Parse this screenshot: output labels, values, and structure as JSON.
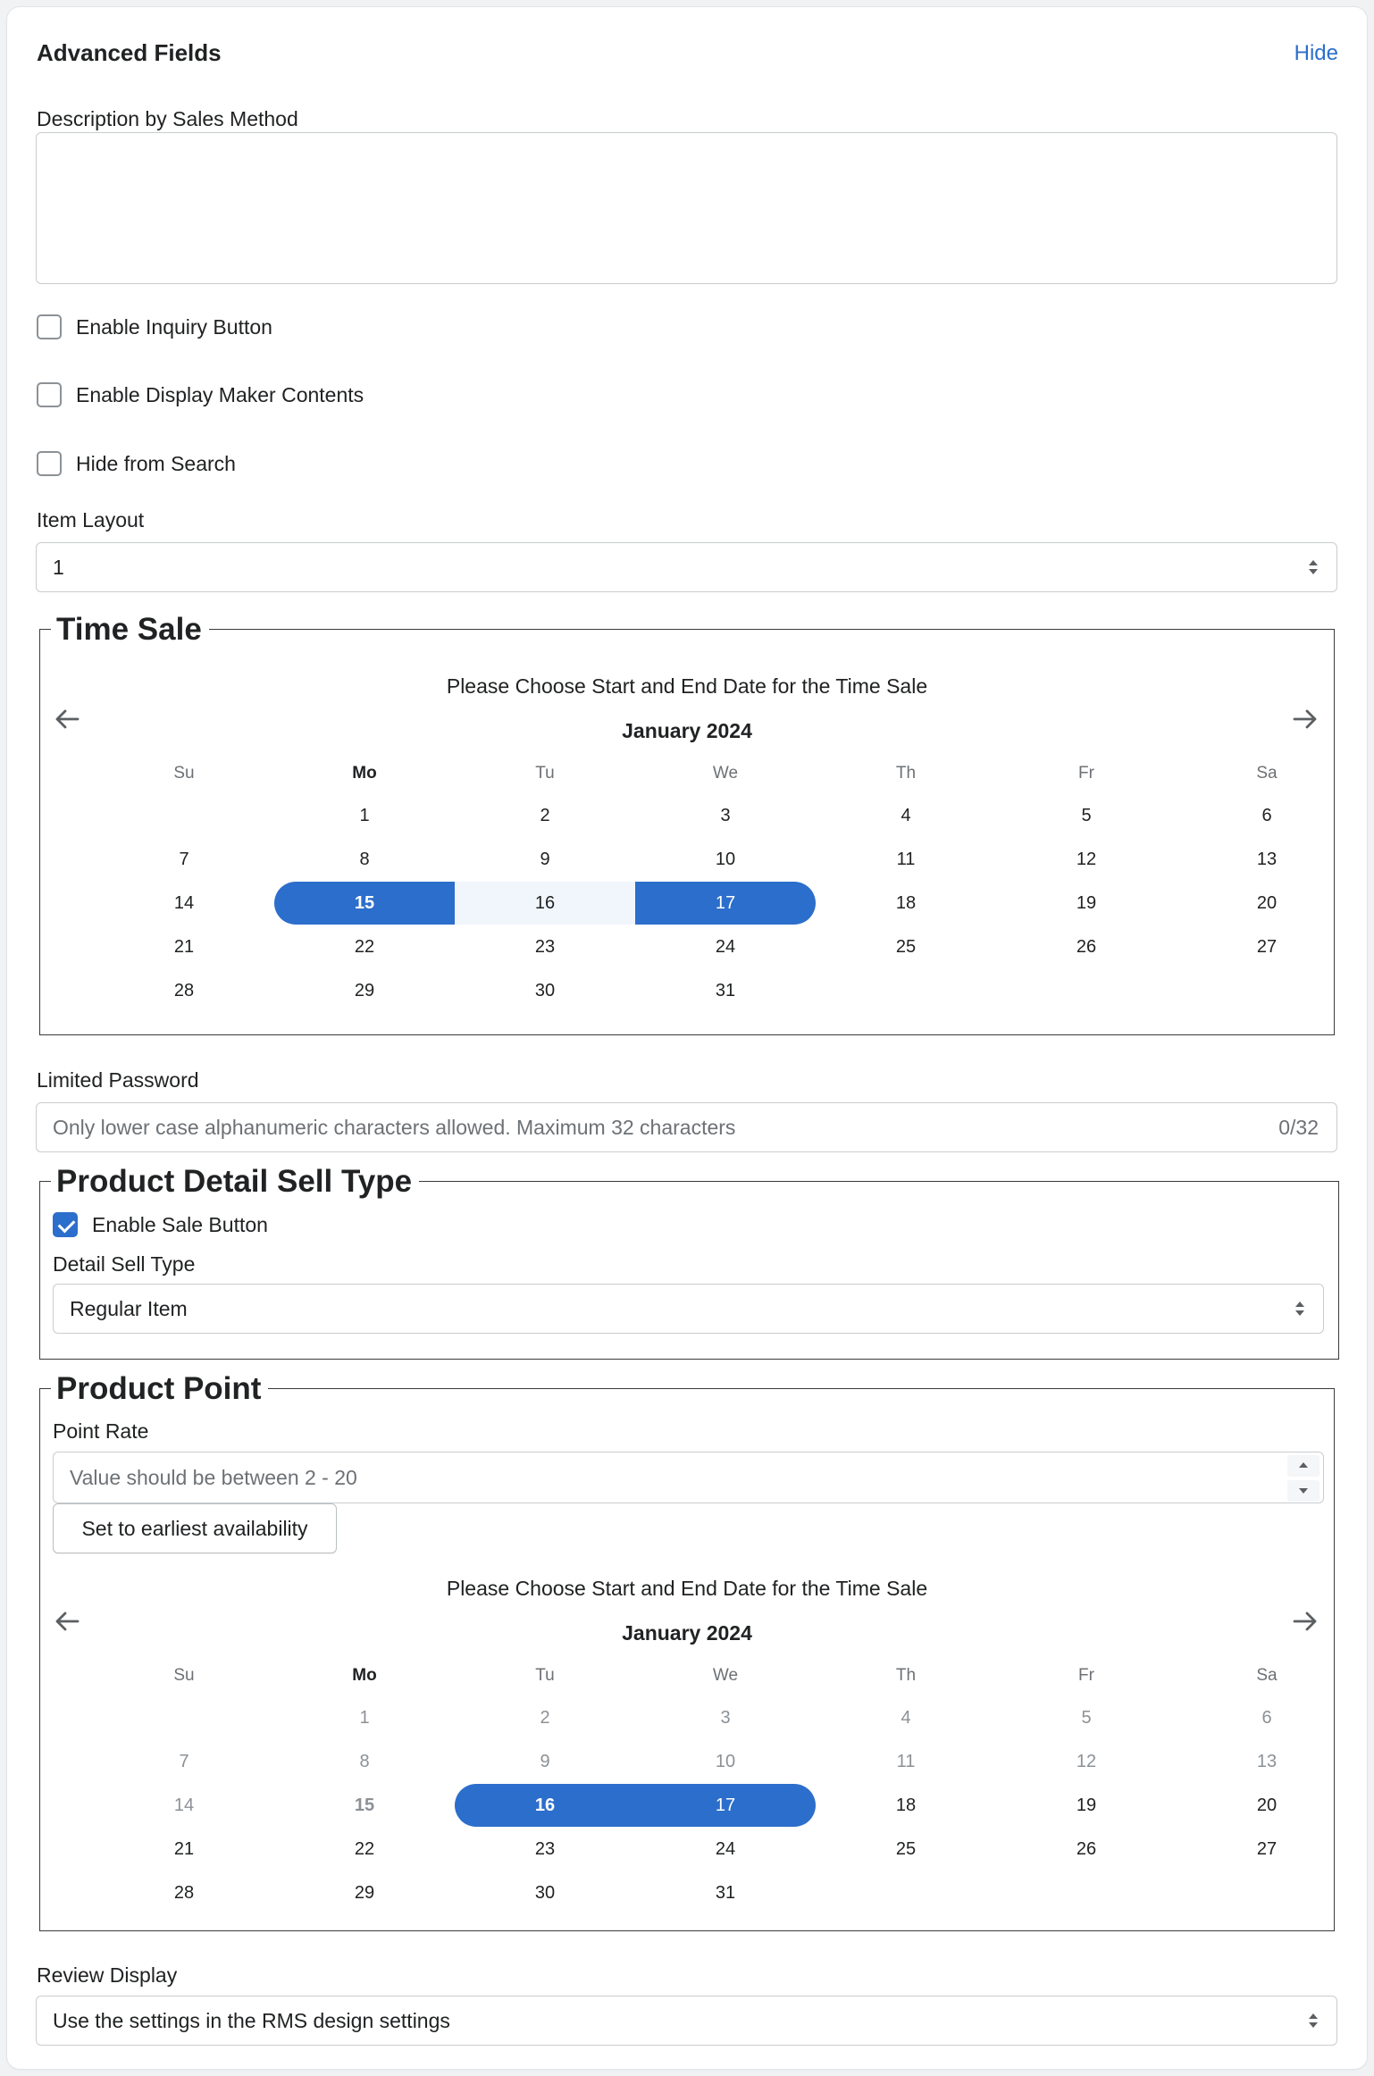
{
  "header": {
    "title": "Advanced Fields",
    "hide_label": "Hide"
  },
  "description": {
    "label": "Description by Sales Method",
    "value": ""
  },
  "checkboxes": {
    "inquiry": {
      "label": "Enable Inquiry Button",
      "checked": false
    },
    "maker": {
      "label": "Enable Display Maker Contents",
      "checked": false
    },
    "hide_search": {
      "label": "Hide from Search",
      "checked": false
    }
  },
  "item_layout": {
    "label": "Item Layout",
    "value": "1"
  },
  "time_sale": {
    "legend": "Time Sale",
    "calendar": {
      "title": "Please Choose Start and End Date for the Time Sale",
      "month": "January 2024",
      "weekdays": [
        "Su",
        "Mo",
        "Tu",
        "We",
        "Th",
        "Fr",
        "Sa"
      ],
      "first_weekday_index": 1,
      "days_in_month": 31,
      "range_start": 15,
      "range_end": 17,
      "disabled_before": 0
    }
  },
  "limited_password": {
    "label": "Limited Password",
    "placeholder": "Only lower case alphanumeric characters allowed. Maximum 32 characters",
    "counter": "0/32"
  },
  "sell_type": {
    "legend": "Product Detail Sell Type",
    "enable_sale": {
      "label": "Enable Sale Button",
      "checked": true
    },
    "detail_label": "Detail Sell Type",
    "detail_value": "Regular Item"
  },
  "product_point": {
    "legend": "Product Point",
    "rate_label": "Point Rate",
    "rate_placeholder": "Value should be between 2 - 20",
    "earliest_button": "Set to earliest availability",
    "calendar": {
      "title": "Please Choose Start and End Date for the Time Sale",
      "month": "January 2024",
      "weekdays": [
        "Su",
        "Mo",
        "Tu",
        "We",
        "Th",
        "Fr",
        "Sa"
      ],
      "first_weekday_index": 1,
      "days_in_month": 31,
      "range_start": 16,
      "range_end": 17,
      "disabled_before": 15
    }
  },
  "review_display": {
    "label": "Review Display",
    "value": "Use the settings in the RMS design settings"
  },
  "colors": {
    "accent": "#2c6ecb",
    "range_bg": "#f1f6fd",
    "border": "#c9cccf"
  }
}
